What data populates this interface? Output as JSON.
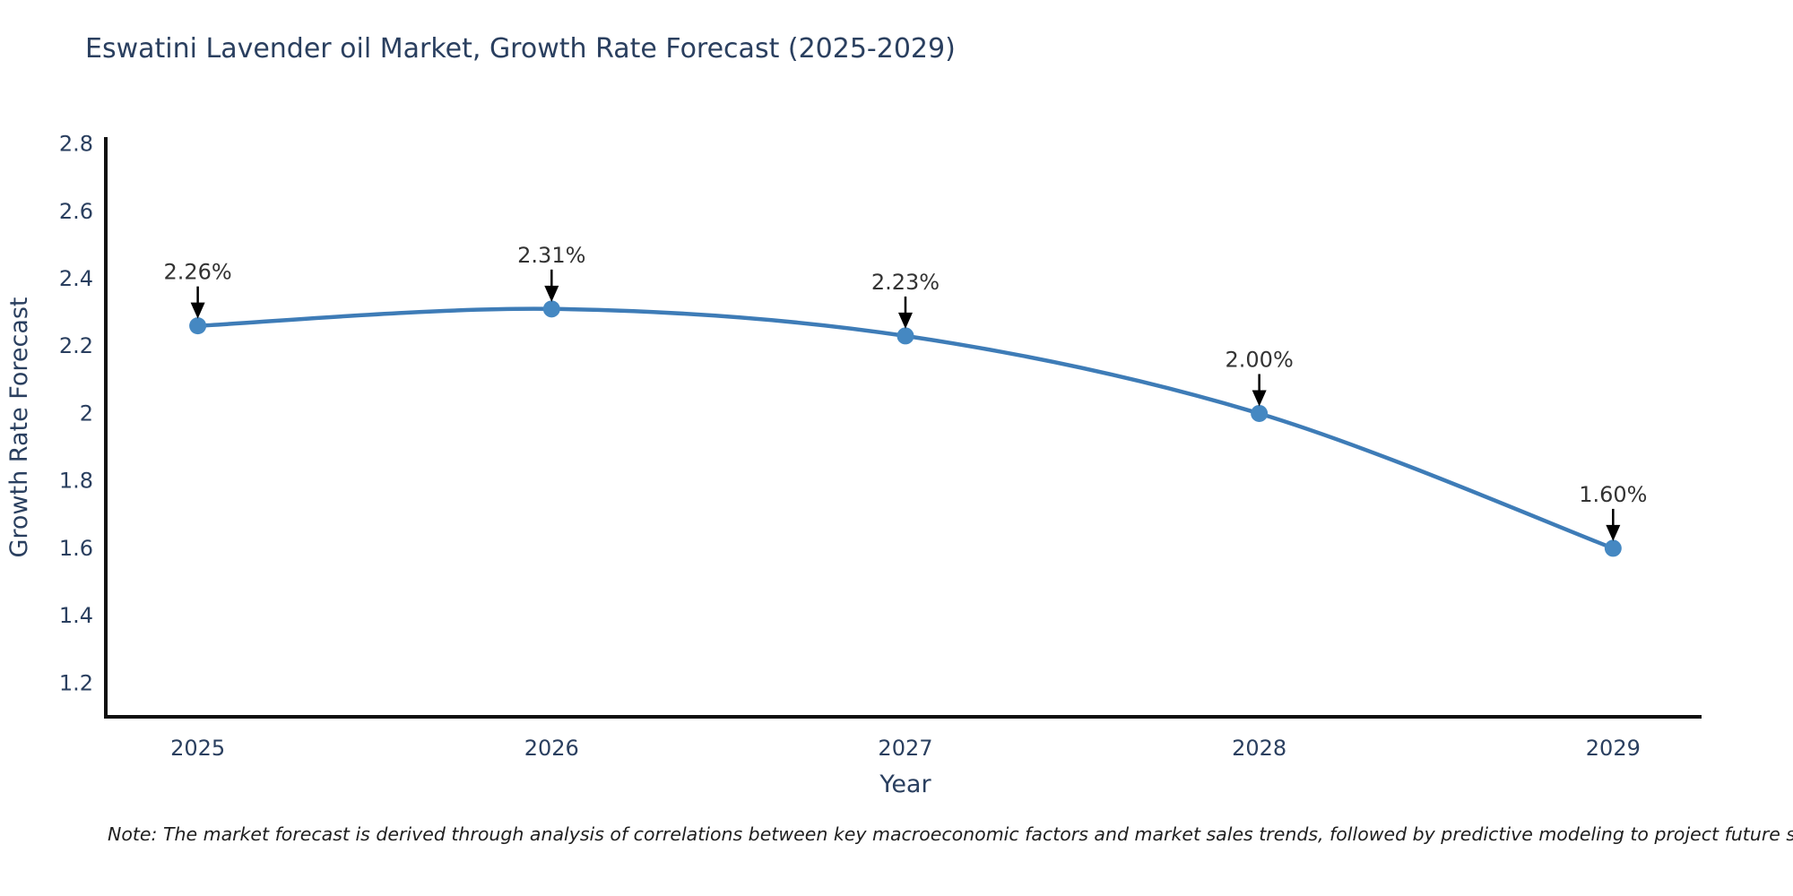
{
  "title": "Eswatini Lavender oil Market, Growth Rate Forecast (2025-2029)",
  "note": "Note: The market forecast is derived through analysis of correlations between key macroeconomic factors and market sales trends, followed by predictive modeling to project future sales",
  "chart_data": {
    "type": "line",
    "title": "Eswatini Lavender oil Market, Growth Rate Forecast (2025-2029)",
    "xlabel": "Year",
    "ylabel": "Growth Rate Forecast",
    "x": [
      2025,
      2026,
      2027,
      2028,
      2029
    ],
    "y": [
      2.26,
      2.31,
      2.23,
      2.0,
      1.6
    ],
    "point_labels": [
      "2.26%",
      "2.31%",
      "2.23%",
      "2.00%",
      "1.60%"
    ],
    "xtick_labels": [
      "2025",
      "2026",
      "2027",
      "2028",
      "2029"
    ],
    "yticks": [
      1.2,
      1.4,
      1.6,
      1.8,
      2.0,
      2.2,
      2.4,
      2.6,
      2.8
    ],
    "ytick_labels": [
      "1.2",
      "1.4",
      "1.6",
      "1.8",
      "2",
      "2.2",
      "2.4",
      "2.6",
      "2.8"
    ],
    "xlim": [
      2024.74,
      2029.25
    ],
    "ylim": [
      1.1,
      2.82
    ],
    "grid": false,
    "legend_position": "none",
    "line_shape": "spline",
    "colors": {
      "line": "#3e7cb7",
      "marker": "#4588c2",
      "axis": "#0f0f0f",
      "tick_text": "#2a3f5f",
      "annotation_text": "#333333",
      "annotation_arrow": "#000000",
      "background": "#ffffff"
    }
  }
}
